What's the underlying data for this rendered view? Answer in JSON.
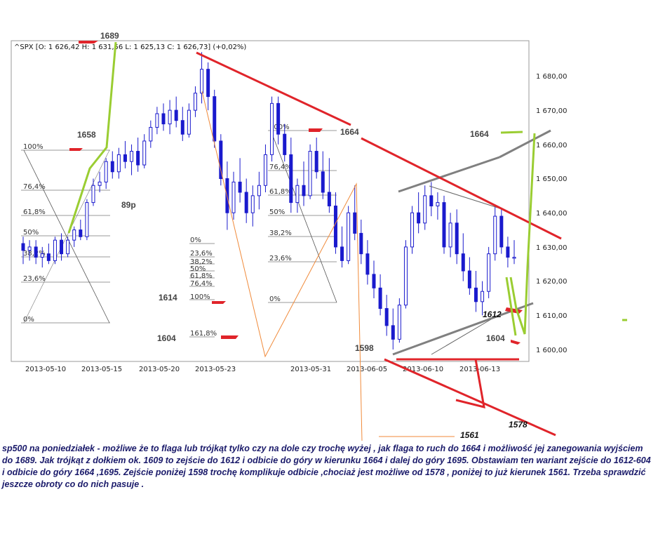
{
  "chart_data": {
    "type": "candlestick",
    "header": "^SPX [O: 1 626,42  H: 1 631,56  L: 1 625,13  C: 1 626,73] (+0,02%)",
    "x_tick_labels": [
      "2013-05-10",
      "2013-05-15",
      "2013-05-20",
      "2013-05-23",
      "2013-05-31",
      "2013-06-05",
      "2013-06-10",
      "2013-06-13"
    ],
    "y_tick_labels": [
      "1 600,00",
      "1 610,00",
      "1 620,00",
      "1 630,00",
      "1 640,00",
      "1 650,00",
      "1 660,00",
      "1 670,00",
      "1 680,00"
    ],
    "y_ticks": [
      1600,
      1610,
      1620,
      1630,
      1640,
      1650,
      1660,
      1670,
      1680
    ],
    "ylim": [
      1596,
      1690
    ],
    "grid": false,
    "candles": [
      {
        "o": 1631,
        "h": 1633,
        "l": 1625,
        "c": 1629
      },
      {
        "o": 1629,
        "h": 1632,
        "l": 1626,
        "c": 1630
      },
      {
        "o": 1630,
        "h": 1632,
        "l": 1625,
        "c": 1627
      },
      {
        "o": 1627,
        "h": 1630,
        "l": 1624,
        "c": 1628
      },
      {
        "o": 1628,
        "h": 1631,
        "l": 1625,
        "c": 1626
      },
      {
        "o": 1626,
        "h": 1633,
        "l": 1625,
        "c": 1632
      },
      {
        "o": 1632,
        "h": 1634,
        "l": 1626,
        "c": 1628
      },
      {
        "o": 1628,
        "h": 1633,
        "l": 1627,
        "c": 1632
      },
      {
        "o": 1632,
        "h": 1636,
        "l": 1630,
        "c": 1635
      },
      {
        "o": 1635,
        "h": 1638,
        "l": 1632,
        "c": 1633
      },
      {
        "o": 1633,
        "h": 1644,
        "l": 1632,
        "c": 1643
      },
      {
        "o": 1643,
        "h": 1650,
        "l": 1642,
        "c": 1648
      },
      {
        "o": 1648,
        "h": 1652,
        "l": 1646,
        "c": 1649
      },
      {
        "o": 1649,
        "h": 1656,
        "l": 1647,
        "c": 1655
      },
      {
        "o": 1655,
        "h": 1658,
        "l": 1650,
        "c": 1652
      },
      {
        "o": 1652,
        "h": 1659,
        "l": 1650,
        "c": 1657
      },
      {
        "o": 1657,
        "h": 1661,
        "l": 1653,
        "c": 1655
      },
      {
        "o": 1655,
        "h": 1660,
        "l": 1651,
        "c": 1658
      },
      {
        "o": 1658,
        "h": 1662,
        "l": 1652,
        "c": 1654
      },
      {
        "o": 1654,
        "h": 1663,
        "l": 1653,
        "c": 1661
      },
      {
        "o": 1661,
        "h": 1667,
        "l": 1659,
        "c": 1665
      },
      {
        "o": 1665,
        "h": 1671,
        "l": 1663,
        "c": 1669
      },
      {
        "o": 1669,
        "h": 1672,
        "l": 1664,
        "c": 1666
      },
      {
        "o": 1666,
        "h": 1673,
        "l": 1663,
        "c": 1670
      },
      {
        "o": 1670,
        "h": 1674,
        "l": 1665,
        "c": 1667
      },
      {
        "o": 1667,
        "h": 1671,
        "l": 1661,
        "c": 1663
      },
      {
        "o": 1663,
        "h": 1672,
        "l": 1662,
        "c": 1670
      },
      {
        "o": 1670,
        "h": 1677,
        "l": 1668,
        "c": 1675
      },
      {
        "o": 1675,
        "h": 1687,
        "l": 1672,
        "c": 1682
      },
      {
        "o": 1682,
        "h": 1684,
        "l": 1670,
        "c": 1674
      },
      {
        "o": 1674,
        "h": 1676,
        "l": 1659,
        "c": 1661
      },
      {
        "o": 1661,
        "h": 1663,
        "l": 1648,
        "c": 1650
      },
      {
        "o": 1650,
        "h": 1655,
        "l": 1635,
        "c": 1640
      },
      {
        "o": 1640,
        "h": 1652,
        "l": 1638,
        "c": 1649
      },
      {
        "o": 1649,
        "h": 1656,
        "l": 1643,
        "c": 1646
      },
      {
        "o": 1646,
        "h": 1650,
        "l": 1637,
        "c": 1640
      },
      {
        "o": 1640,
        "h": 1648,
        "l": 1636,
        "c": 1645
      },
      {
        "o": 1645,
        "h": 1652,
        "l": 1641,
        "c": 1648
      },
      {
        "o": 1648,
        "h": 1660,
        "l": 1646,
        "c": 1657
      },
      {
        "o": 1657,
        "h": 1674,
        "l": 1655,
        "c": 1672
      },
      {
        "o": 1672,
        "h": 1674,
        "l": 1660,
        "c": 1663
      },
      {
        "o": 1663,
        "h": 1666,
        "l": 1655,
        "c": 1657
      },
      {
        "o": 1657,
        "h": 1662,
        "l": 1640,
        "c": 1643
      },
      {
        "o": 1643,
        "h": 1650,
        "l": 1640,
        "c": 1648
      },
      {
        "o": 1648,
        "h": 1655,
        "l": 1642,
        "c": 1645
      },
      {
        "o": 1645,
        "h": 1660,
        "l": 1644,
        "c": 1658
      },
      {
        "o": 1658,
        "h": 1662,
        "l": 1650,
        "c": 1652
      },
      {
        "o": 1652,
        "h": 1658,
        "l": 1644,
        "c": 1646
      },
      {
        "o": 1646,
        "h": 1656,
        "l": 1640,
        "c": 1642
      },
      {
        "o": 1642,
        "h": 1646,
        "l": 1628,
        "c": 1630
      },
      {
        "o": 1630,
        "h": 1636,
        "l": 1624,
        "c": 1626
      },
      {
        "o": 1626,
        "h": 1642,
        "l": 1625,
        "c": 1640
      },
      {
        "o": 1640,
        "h": 1648,
        "l": 1632,
        "c": 1634
      },
      {
        "o": 1634,
        "h": 1638,
        "l": 1625,
        "c": 1628
      },
      {
        "o": 1628,
        "h": 1632,
        "l": 1619,
        "c": 1622
      },
      {
        "o": 1622,
        "h": 1626,
        "l": 1615,
        "c": 1618
      },
      {
        "o": 1618,
        "h": 1622,
        "l": 1610,
        "c": 1612
      },
      {
        "o": 1612,
        "h": 1616,
        "l": 1604,
        "c": 1607
      },
      {
        "o": 1607,
        "h": 1612,
        "l": 1600,
        "c": 1603
      },
      {
        "o": 1603,
        "h": 1615,
        "l": 1602,
        "c": 1613
      },
      {
        "o": 1613,
        "h": 1632,
        "l": 1612,
        "c": 1630
      },
      {
        "o": 1630,
        "h": 1642,
        "l": 1628,
        "c": 1640
      },
      {
        "o": 1640,
        "h": 1646,
        "l": 1634,
        "c": 1637
      },
      {
        "o": 1637,
        "h": 1648,
        "l": 1635,
        "c": 1645
      },
      {
        "o": 1645,
        "h": 1649,
        "l": 1639,
        "c": 1642
      },
      {
        "o": 1642,
        "h": 1646,
        "l": 1638,
        "c": 1643
      },
      {
        "o": 1643,
        "h": 1645,
        "l": 1628,
        "c": 1630
      },
      {
        "o": 1630,
        "h": 1640,
        "l": 1627,
        "c": 1637
      },
      {
        "o": 1637,
        "h": 1641,
        "l": 1625,
        "c": 1628
      },
      {
        "o": 1628,
        "h": 1634,
        "l": 1620,
        "c": 1623
      },
      {
        "o": 1623,
        "h": 1627,
        "l": 1616,
        "c": 1618
      },
      {
        "o": 1618,
        "h": 1623,
        "l": 1611,
        "c": 1614
      },
      {
        "o": 1614,
        "h": 1620,
        "l": 1610,
        "c": 1617
      },
      {
        "o": 1617,
        "h": 1630,
        "l": 1615,
        "c": 1628
      },
      {
        "o": 1628,
        "h": 1642,
        "l": 1626,
        "c": 1639
      },
      {
        "o": 1639,
        "h": 1641,
        "l": 1628,
        "c": 1630
      },
      {
        "o": 1630,
        "h": 1633,
        "l": 1624,
        "c": 1627
      },
      {
        "o": 1627,
        "h": 1632,
        "l": 1625,
        "c": 1627
      }
    ]
  },
  "fib_sets": [
    {
      "labels": [
        "100%",
        "76,4%",
        "61,8%",
        "50%",
        "38,2%",
        "23,6%",
        "0%"
      ]
    },
    {
      "labels": [
        "0%",
        "23,6%",
        "38,2%",
        "50%",
        "61,8%",
        "76,4%",
        "100%",
        "161,8%"
      ]
    },
    {
      "labels": [
        "100%",
        "76,4%",
        "61,8%",
        "50%",
        "38,2%",
        "23,6%",
        "0%"
      ]
    }
  ],
  "annotations": {
    "a1689": "1689",
    "a1658": "1658",
    "a89p": "89p",
    "a1614": "1614",
    "a1604_left": "1604",
    "a1664_mid": "1664",
    "a1664_right": "1664",
    "a1612": "1612",
    "a1604_right": "1604",
    "a1598": "1598",
    "a1561": "1561",
    "a1578": "1578"
  },
  "caption": "sp500 na poniedziałek - możliwe że to flaga  lub trójkąt tylko czy na dole czy trochę wyżej , jak flaga to ruch do 1664 i możliwość jej zanegowania wyjściem do 1689. Jak trójkąt  z dołkiem ok. 1609 to zejście do 1612 i odbicie do góry  w kierunku 1664 i dalej do góry  1695. Obstawiam ten wariant zejście do 1612-604 i odbicie do góry 1664 ,1695. Zejście poniżej 1598  trochę komplikuje odbicie ,chociaż jest możliwe od  1578 ,   poniżej to już kierunek 1561. Trzeba sprawdzić jeszcze obroty co do nich pasuje .",
  "colors": {
    "candle": "#1a1acd",
    "red": "#e0242a",
    "green": "#9acd32",
    "gray": "#808080",
    "orange": "#f08a3a"
  }
}
